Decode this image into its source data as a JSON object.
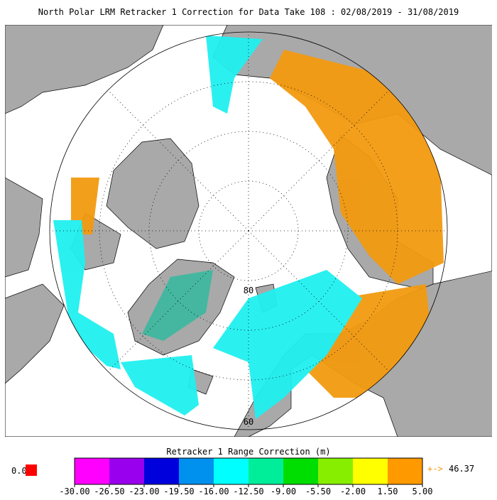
{
  "header": {
    "title": "North Polar LRM Retracker 1 Correction for Data Take 108 : 02/08/2019 - 31/08/2019"
  },
  "map": {
    "lat_labels": [
      "80",
      "60"
    ]
  },
  "colorbar": {
    "label": "Retracker 1 Range Correction (m)",
    "tick_labels": [
      "-30.00",
      "-26.50",
      "-23.00",
      "-19.50",
      "-16.00",
      "-12.50",
      "-9.00",
      "-5.50",
      "-2.00",
      "1.50",
      "5.00"
    ],
    "colors": [
      "#ff00ff",
      "#9900ee",
      "#0000dd",
      "#0090ee",
      "#00ffff",
      "#00ee99",
      "#00dd00",
      "#88ee00",
      "#ffff00",
      "#ff9900"
    ],
    "min_label": "0.0",
    "max_label": "46.37"
  }
}
